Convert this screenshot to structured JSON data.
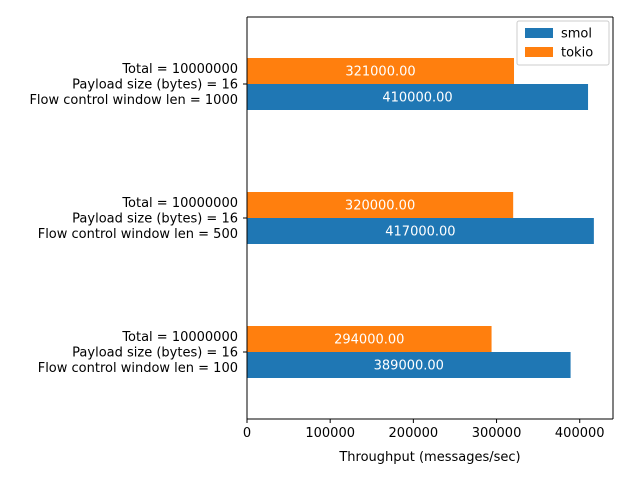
{
  "chart_data": {
    "type": "bar",
    "orientation": "horizontal",
    "title": "",
    "xlabel": "Throughput (messages/sec)",
    "ylabel": "",
    "xlim": [
      0,
      440000
    ],
    "xticks": [
      0,
      100000,
      200000,
      300000,
      400000
    ],
    "xtick_labels": [
      "0",
      "100000",
      "200000",
      "300000",
      "400000"
    ],
    "grid": false,
    "legend": {
      "placement": "top-right"
    },
    "categories": [
      [
        "Total = 10000000",
        "Payload size (bytes) = 16",
        "Flow control window len = 1000"
      ],
      [
        "Total = 10000000",
        "Payload size (bytes) = 16",
        "Flow control window len = 500"
      ],
      [
        "Total = 10000000",
        "Payload size (bytes) = 16",
        "Flow control window len = 100"
      ]
    ],
    "series": [
      {
        "name": "smol",
        "color": "#1f77b4",
        "values": [
          410000,
          417000,
          389000
        ],
        "labels": [
          "410000.00",
          "417000.00",
          "389000.00"
        ]
      },
      {
        "name": "tokio",
        "color": "#ff7f0e",
        "values": [
          321000,
          320000,
          294000
        ],
        "labels": [
          "321000.00",
          "320000.00",
          "294000.00"
        ]
      }
    ]
  }
}
